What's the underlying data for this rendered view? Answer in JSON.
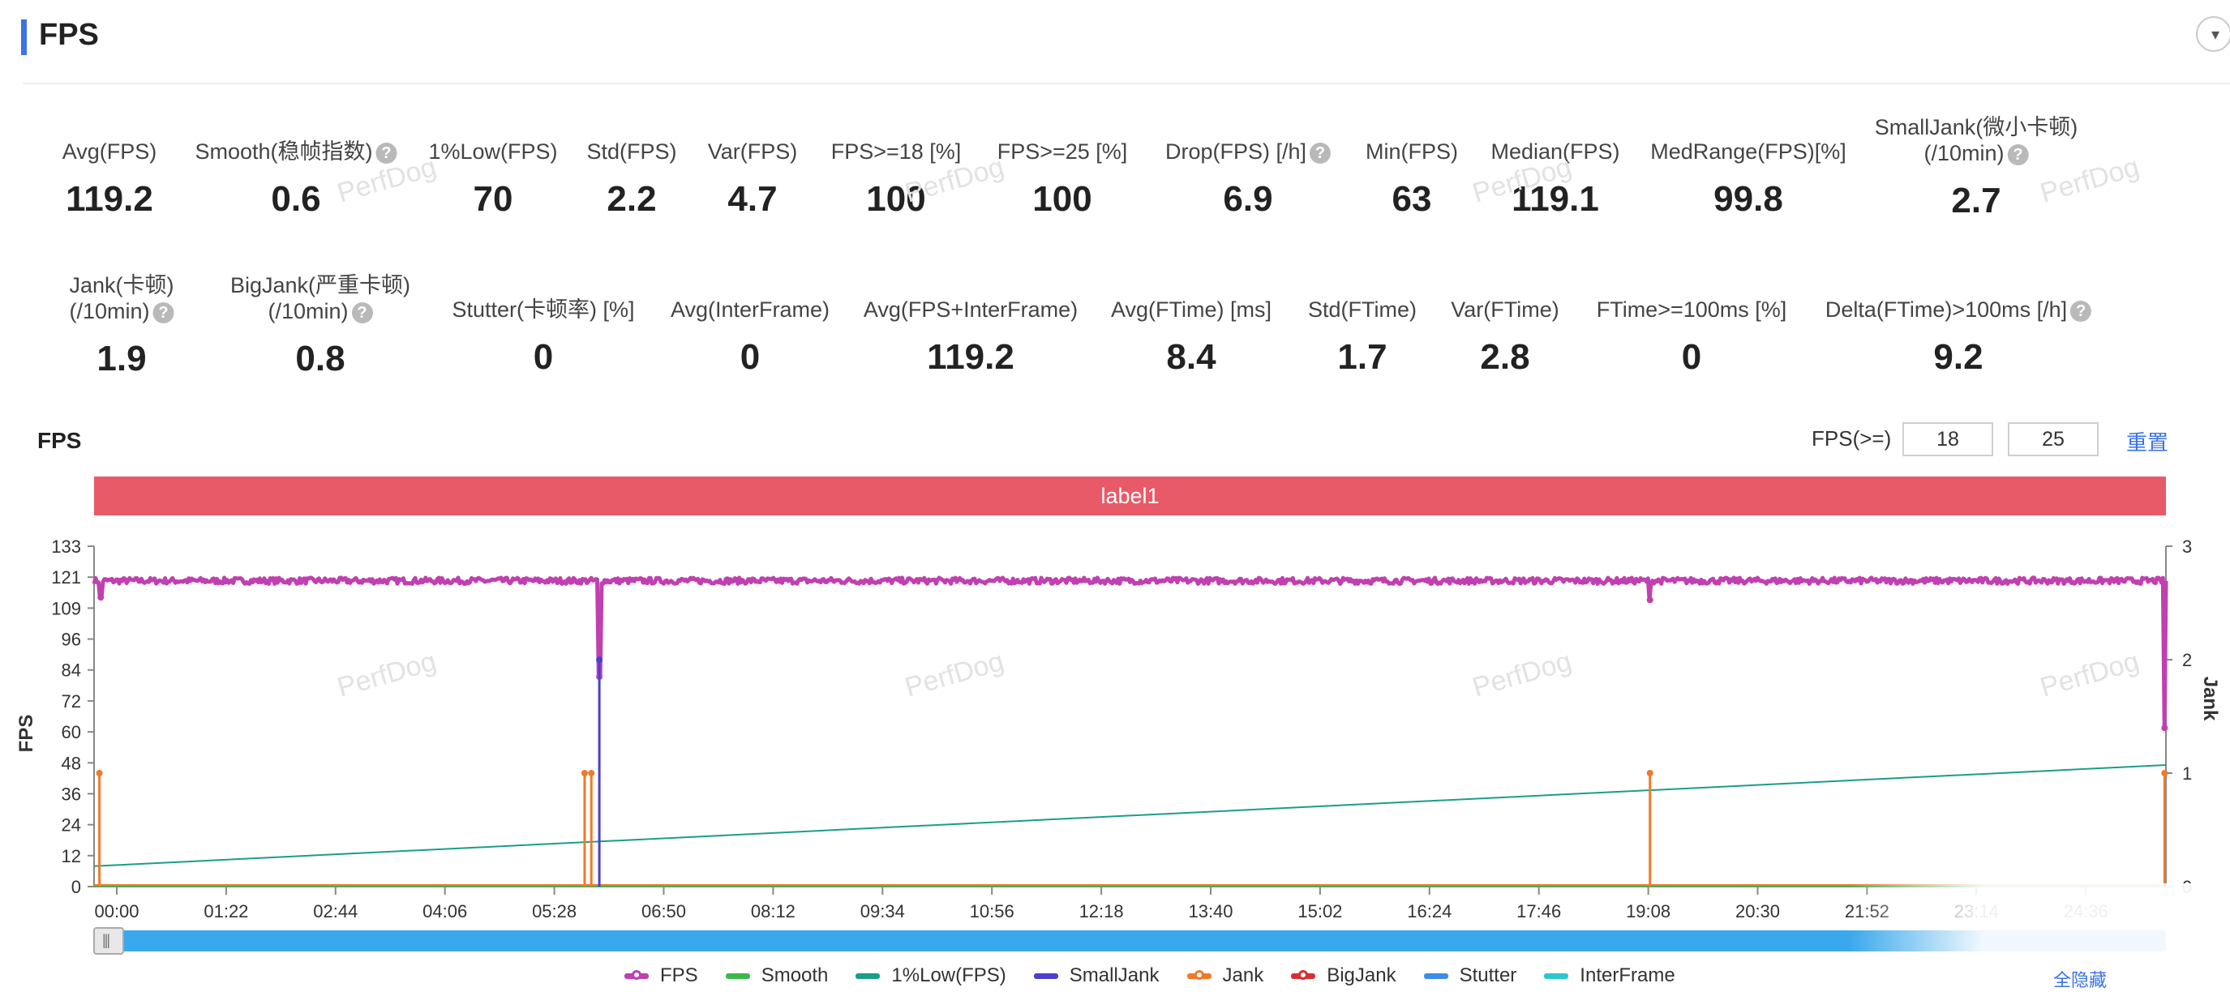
{
  "header": {
    "title": "FPS",
    "collapse_icon": "chevron-down-icon"
  },
  "metrics_row1": [
    {
      "label": "Avg(FPS)",
      "value": "119.2",
      "help": false
    },
    {
      "label": "Smooth(稳帧指数)",
      "value": "0.6",
      "help": true
    },
    {
      "label": "1%Low(FPS)",
      "value": "70",
      "help": false
    },
    {
      "label": "Std(FPS)",
      "value": "2.2",
      "help": false
    },
    {
      "label": "Var(FPS)",
      "value": "4.7",
      "help": false
    },
    {
      "label": "FPS>=18 [%]",
      "value": "100",
      "help": false
    },
    {
      "label": "FPS>=25 [%]",
      "value": "100",
      "help": false
    },
    {
      "label": "Drop(FPS) [/h]",
      "value": "6.9",
      "help": true
    },
    {
      "label": "Min(FPS)",
      "value": "63",
      "help": false
    },
    {
      "label": "Median(FPS)",
      "value": "119.1",
      "help": false
    },
    {
      "label": "MedRange(FPS)[%]",
      "value": "99.8",
      "help": false
    },
    {
      "label": "SmallJank(微小卡顿)",
      "label2": "(/10min)",
      "value": "2.7",
      "help": true
    }
  ],
  "metrics_row2": [
    {
      "label": "Jank(卡顿)",
      "label2": "(/10min)",
      "value": "1.9",
      "help": true
    },
    {
      "label": "BigJank(严重卡顿)",
      "label2": "(/10min)",
      "value": "0.8",
      "help": true
    },
    {
      "label": "Stutter(卡顿率) [%]",
      "value": "0",
      "help": false
    },
    {
      "label": "Avg(InterFrame)",
      "value": "0",
      "help": false
    },
    {
      "label": "Avg(FPS+InterFrame)",
      "value": "119.2",
      "help": false
    },
    {
      "label": "Avg(FTime) [ms]",
      "value": "8.4",
      "help": false
    },
    {
      "label": "Std(FTime)",
      "value": "1.7",
      "help": false
    },
    {
      "label": "Var(FTime)",
      "value": "2.8",
      "help": false
    },
    {
      "label": "FTime>=100ms [%]",
      "value": "0",
      "help": false
    },
    {
      "label": "Delta(FTime)>100ms [/h]",
      "value": "9.2",
      "help": true
    }
  ],
  "chart_controls": {
    "title": "FPS",
    "threshold_label": "FPS(>=)",
    "threshold1": "18",
    "threshold2": "25",
    "reset_label": "重置"
  },
  "label_band": "label1",
  "watermark": "PerfDog",
  "hide_all_label": "全隐藏",
  "help_icon": "question-circle-icon",
  "colors": {
    "accent": "#3b72e8",
    "label_band": "#e85a67",
    "fps": "#c040b0",
    "smooth": "#3cb84a",
    "low1": "#1a9e88",
    "smalljank": "#4b3fd0",
    "jank": "#f07a2a",
    "bigjank": "#d83030",
    "stutter": "#3d8ee8",
    "interframe": "#2cc8cc",
    "scrollbar": "#3aa8ec"
  },
  "chart_data": {
    "type": "line",
    "xlabel": "",
    "ylabel": "FPS",
    "y2label": "Jank",
    "ylim": [
      0,
      133
    ],
    "y2lim": [
      0,
      3
    ],
    "yticks": [
      "0",
      "12",
      "24",
      "36",
      "48",
      "60",
      "72",
      "84",
      "96",
      "109",
      "121",
      "133"
    ],
    "y2ticks": [
      "0",
      "1",
      "2",
      "3"
    ],
    "xticks": [
      "00:00",
      "01:22",
      "02:44",
      "04:06",
      "05:28",
      "06:50",
      "08:12",
      "09:34",
      "10:56",
      "12:18",
      "13:40",
      "15:02",
      "16:24",
      "17:46",
      "19:08",
      "20:30",
      "21:52",
      "23:14",
      "24:36"
    ],
    "duration_s": 1550,
    "legend": [
      "FPS",
      "Smooth",
      "1%Low(FPS)",
      "SmallJank",
      "Jank",
      "BigJank",
      "Stutter",
      "InterFrame"
    ],
    "series": [
      {
        "name": "FPS",
        "baseline": 119.5,
        "dips": [
          [
            5,
            113
          ],
          [
            378,
            82
          ],
          [
            1164,
            112
          ],
          [
            1549,
            62
          ]
        ]
      },
      {
        "name": "1%Low(FPS)",
        "x": [
          0,
          1550
        ],
        "values": [
          8,
          47.5
        ]
      },
      {
        "name": "SmallJank",
        "spikes": [
          [
            378,
            2
          ]
        ]
      },
      {
        "name": "Jank",
        "spikes": [
          [
            4,
            1
          ],
          [
            367,
            1
          ],
          [
            372,
            1
          ],
          [
            1164,
            1
          ],
          [
            1549,
            1
          ]
        ]
      },
      {
        "name": "Smooth",
        "values_constant": 0
      },
      {
        "name": "BigJank",
        "values_constant": 0
      },
      {
        "name": "Stutter",
        "values_constant": 0
      },
      {
        "name": "InterFrame",
        "values_constant": 0
      }
    ]
  }
}
